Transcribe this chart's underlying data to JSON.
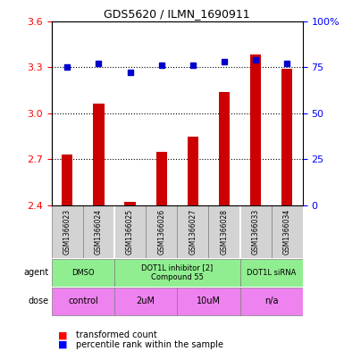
{
  "title": "GDS5620 / ILMN_1690911",
  "samples": [
    "GSM1366023",
    "GSM1366024",
    "GSM1366025",
    "GSM1366026",
    "GSM1366027",
    "GSM1366028",
    "GSM1366033",
    "GSM1366034"
  ],
  "red_values": [
    2.73,
    3.06,
    2.42,
    2.75,
    2.85,
    3.14,
    3.38,
    3.29
  ],
  "blue_values": [
    75,
    77,
    72,
    76,
    76,
    78,
    79,
    77
  ],
  "ylim_left": [
    2.4,
    3.6
  ],
  "ylim_right": [
    0,
    100
  ],
  "yticks_left": [
    2.4,
    2.7,
    3.0,
    3.3,
    3.6
  ],
  "yticks_right": [
    0,
    25,
    50,
    75,
    100
  ],
  "ytick_labels_right": [
    "0",
    "25",
    "50",
    "75",
    "100%"
  ],
  "gridlines": [
    2.7,
    3.0,
    3.3
  ],
  "bar_color": "#cc0000",
  "dot_color": "#0000cc",
  "agent_groups": [
    {
      "label": "DMSO",
      "color": "#90ee90",
      "start": 0,
      "end": 2
    },
    {
      "label": "DOT1L inhibitor [2]\nCompound 55",
      "color": "#90ee90",
      "start": 2,
      "end": 6
    },
    {
      "label": "DOT1L siRNA",
      "color": "#90ee90",
      "start": 6,
      "end": 8
    }
  ],
  "dose_groups": [
    {
      "label": "control",
      "color": "#ee82ee",
      "start": 0,
      "end": 2
    },
    {
      "label": "2uM",
      "color": "#ee82ee",
      "start": 2,
      "end": 4
    },
    {
      "label": "10uM",
      "color": "#ee82ee",
      "start": 4,
      "end": 6
    },
    {
      "label": "n/a",
      "color": "#ee82ee",
      "start": 6,
      "end": 8
    }
  ],
  "agent_label": "agent",
  "dose_label": "dose",
  "legend_red": "transformed count",
  "legend_blue": "percentile rank within the sample",
  "bar_bottom": 2.4
}
